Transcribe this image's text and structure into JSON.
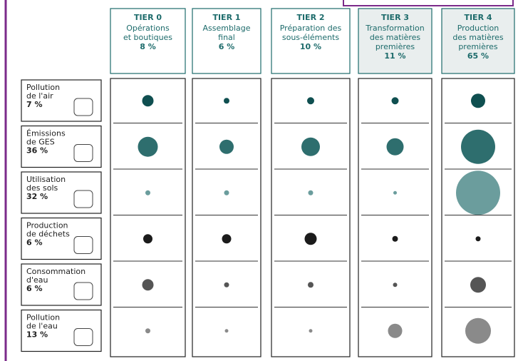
{
  "chart_data": {
    "type": "bubble-matrix",
    "tiers": [
      {
        "name": "TIER 0",
        "lines": [
          "Opérations",
          "et boutiques"
        ],
        "share": "8 %"
      },
      {
        "name": "TIER 1",
        "lines": [
          "Assemblage",
          "final"
        ],
        "share": "6 %"
      },
      {
        "name": "TIER 2",
        "lines": [
          "Préparation des",
          "sous-éléments"
        ],
        "share": "10 %"
      },
      {
        "name": "TIER 3",
        "lines": [
          "Transformation",
          "des matières",
          "premières"
        ],
        "share": "11 %"
      },
      {
        "name": "TIER 4",
        "lines": [
          "Production",
          "des matières",
          "premières"
        ],
        "share": "65 %"
      }
    ],
    "rows": [
      {
        "lines": [
          "Pollution",
          "de l'air"
        ],
        "share": "7 %",
        "color": "#0f4f50",
        "sizes": [
          16,
          8,
          10,
          10,
          20
        ]
      },
      {
        "lines": [
          "Émissions",
          "de GES"
        ],
        "share": "36 %",
        "color": "#2e6e6e",
        "sizes": [
          28,
          20,
          26,
          24,
          48
        ]
      },
      {
        "lines": [
          "Utilisation",
          "des sols"
        ],
        "share": "32 %",
        "color": "#6b9d9d",
        "sizes": [
          7,
          7,
          7,
          5,
          62
        ]
      },
      {
        "lines": [
          "Production",
          "de déchets"
        ],
        "share": "6 %",
        "color": "#1b1b1b",
        "sizes": [
          13,
          13,
          17,
          8,
          7
        ]
      },
      {
        "lines": [
          "Consommation",
          "d'eau"
        ],
        "share": "6 %",
        "color": "#555555",
        "sizes": [
          16,
          7,
          8,
          6,
          22
        ]
      },
      {
        "lines": [
          "Pollution",
          "de l'eau"
        ],
        "share": "13 %",
        "color": "#8a8a8a",
        "sizes": [
          7,
          5,
          5,
          20,
          36
        ]
      }
    ]
  }
}
